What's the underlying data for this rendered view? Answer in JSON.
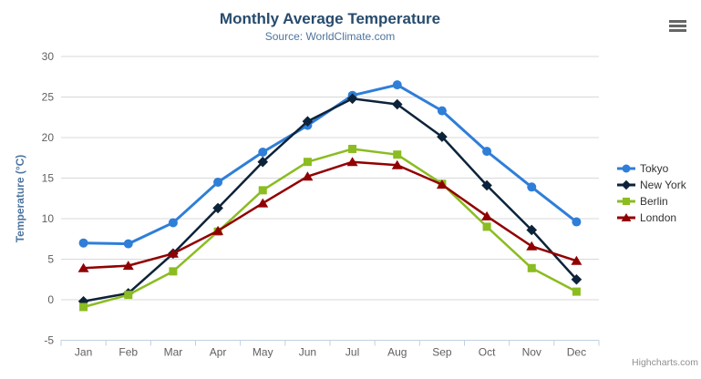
{
  "credits": {
    "label": "Highcharts.com"
  },
  "icons": {
    "context_menu": "hamburger"
  },
  "colors": {
    "title": "#274b6d",
    "subtitle": "#4d759e",
    "axis_label": "#606060",
    "axis_title": "#4d759e",
    "gridline": "#d8d8d8",
    "axis_line": "#c0d0e0",
    "legend_text": "#333333",
    "credits": "#909090",
    "menu_icon": "#666666"
  },
  "chart_data": {
    "type": "line",
    "title": "Monthly Average Temperature",
    "subtitle": "Source: WorldClimate.com",
    "categories": [
      "Jan",
      "Feb",
      "Mar",
      "Apr",
      "May",
      "Jun",
      "Jul",
      "Aug",
      "Sep",
      "Oct",
      "Nov",
      "Dec"
    ],
    "series": [
      {
        "name": "Tokyo",
        "color": "#2f7ed8",
        "marker": "circle",
        "line_width": 3,
        "values": [
          7.0,
          6.9,
          9.5,
          14.5,
          18.2,
          21.5,
          25.2,
          26.5,
          23.3,
          18.3,
          13.9,
          9.6
        ]
      },
      {
        "name": "New York",
        "color": "#0d233a",
        "marker": "diamond",
        "line_width": 2.5,
        "values": [
          -0.2,
          0.8,
          5.7,
          11.3,
          17.0,
          22.0,
          24.8,
          24.1,
          20.1,
          14.1,
          8.6,
          2.5
        ]
      },
      {
        "name": "Berlin",
        "color": "#8bbc21",
        "marker": "square",
        "line_width": 2.5,
        "values": [
          -0.9,
          0.6,
          3.5,
          8.4,
          13.5,
          17.0,
          18.6,
          17.9,
          14.3,
          9.0,
          3.9,
          1.0
        ]
      },
      {
        "name": "London",
        "color": "#910000",
        "marker": "triangle",
        "line_width": 2.5,
        "values": [
          3.9,
          4.2,
          5.7,
          8.5,
          11.9,
          15.2,
          17.0,
          16.6,
          14.2,
          10.3,
          6.6,
          4.8
        ]
      }
    ],
    "xlabel": "",
    "ylabel": "Temperature (°C)",
    "ylim": [
      -5,
      30
    ],
    "yticks": [
      -5,
      0,
      5,
      10,
      15,
      20,
      25,
      30
    ],
    "grid": true,
    "legend_position": "right"
  }
}
